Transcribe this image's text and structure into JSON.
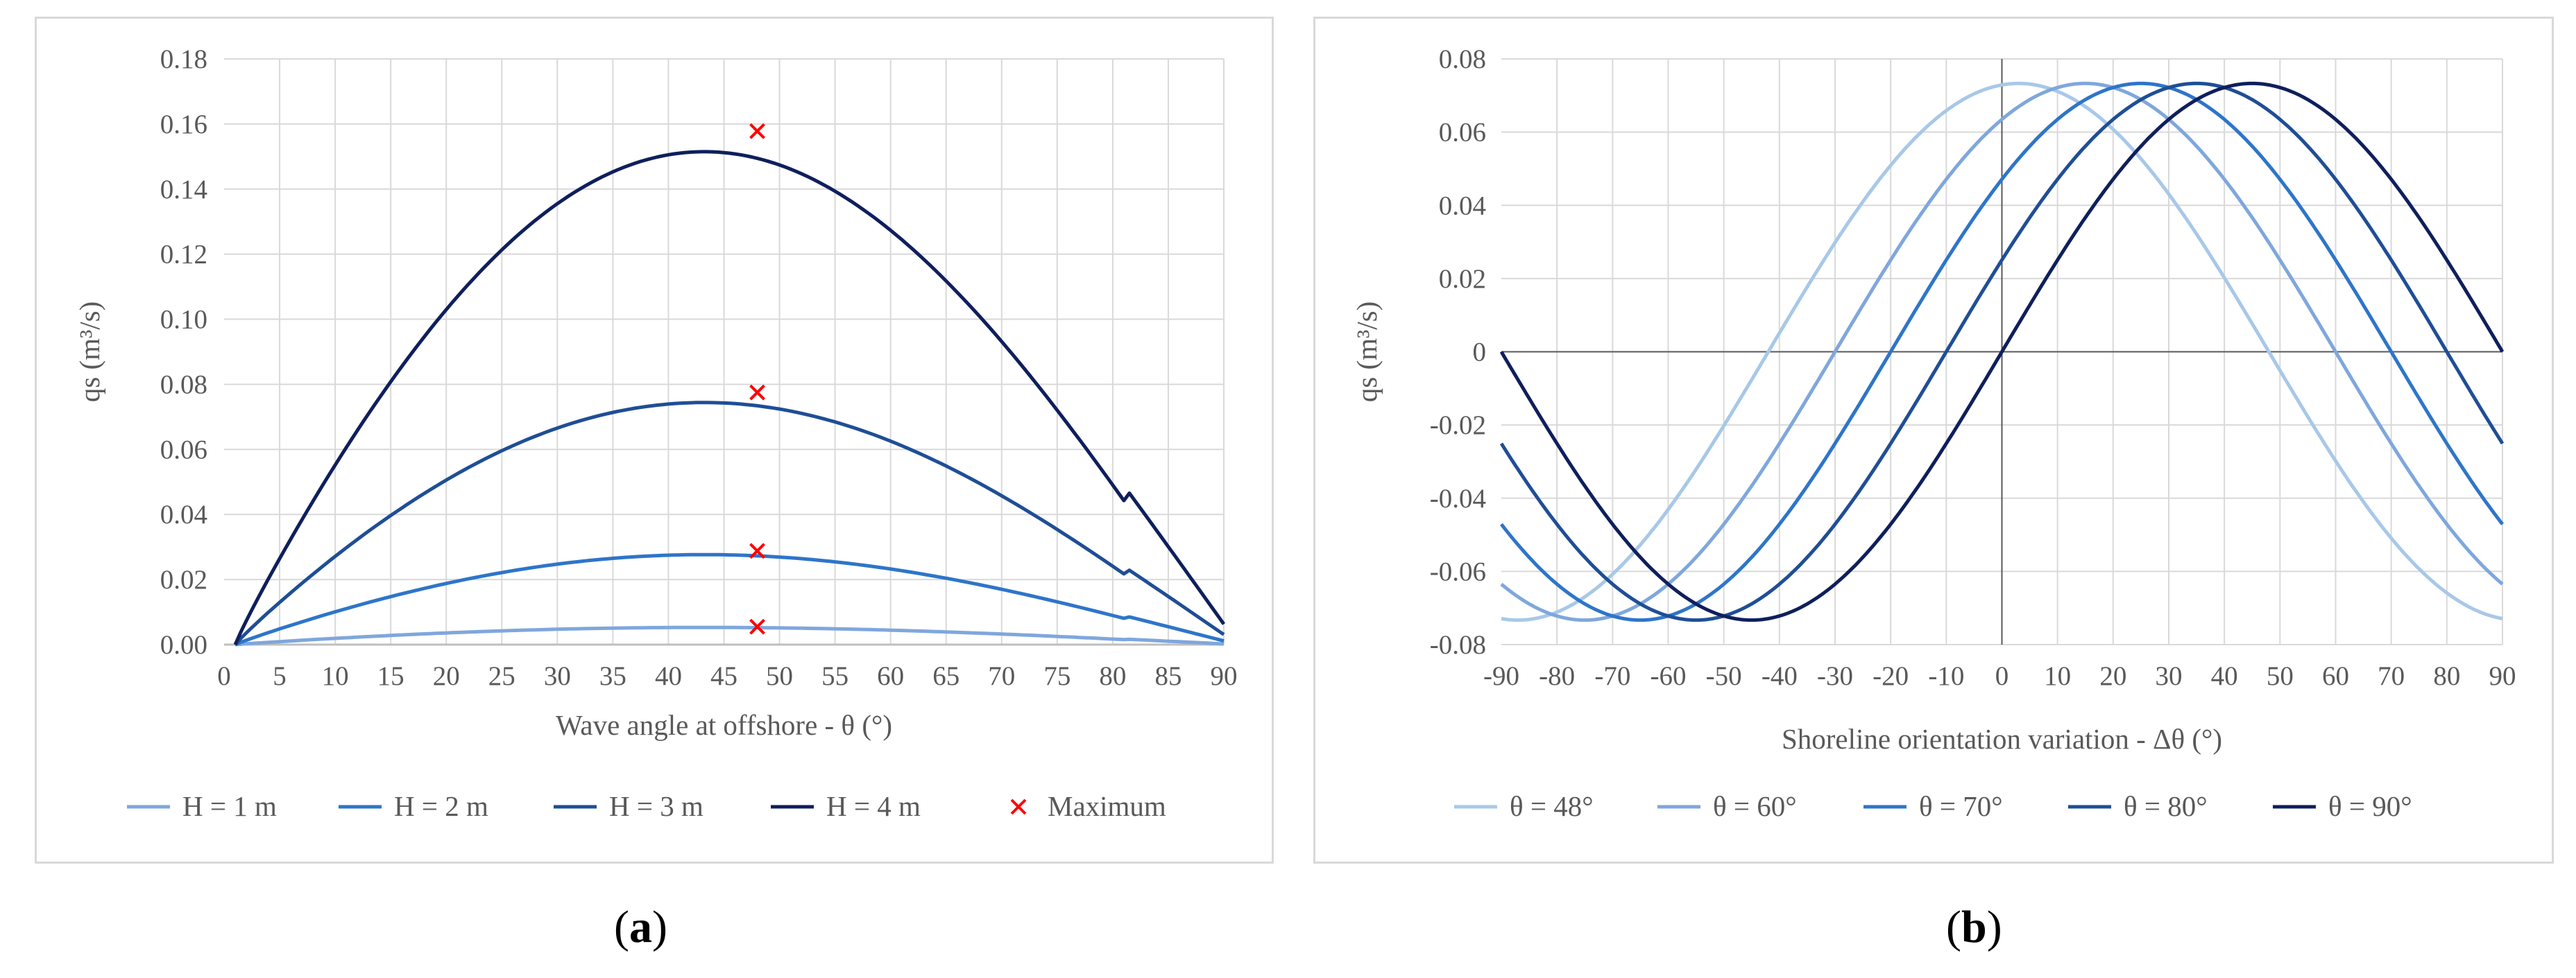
{
  "captions": {
    "a_letter": "a",
    "b_letter": "b",
    "open": "(",
    "close": ")"
  },
  "colors": {
    "h1": "#7fa7dc",
    "h2": "#2e75c9",
    "h3": "#1f4e96",
    "h4": "#0f1f5c",
    "maximum": "#ff0000",
    "t48": "#a8c8e8",
    "t60": "#7fa7dc",
    "t70": "#2e75c9",
    "t80": "#1f4e96",
    "t90": "#0f1f5c",
    "grid": "#d9d9d9",
    "axis": "#595959"
  },
  "chart_data": [
    {
      "type": "line",
      "panel": "a",
      "xlabel": "Wave angle at offshore - θ (°)",
      "ylabel": "qs (m³/s)",
      "xlim": [
        0,
        90
      ],
      "ylim": [
        0,
        0.18
      ],
      "xticks": [
        "0",
        "5",
        "10",
        "15",
        "20",
        "25",
        "30",
        "35",
        "40",
        "45",
        "50",
        "55",
        "60",
        "65",
        "70",
        "75",
        "80",
        "85",
        "90"
      ],
      "yticks": [
        "0.00",
        "0.02",
        "0.04",
        "0.06",
        "0.08",
        "0.10",
        "0.12",
        "0.14",
        "0.16",
        "0.18"
      ],
      "grid": true,
      "legend_position": "bottom",
      "series": [
        {
          "name": "H = 1 m",
          "color_key": "h1",
          "peak": 0.0055
        },
        {
          "name": "H = 2 m",
          "color_key": "h2",
          "peak": 0.0288
        },
        {
          "name": "H = 3 m",
          "color_key": "h3",
          "peak": 0.0775
        },
        {
          "name": "H = 4 m",
          "color_key": "h4",
          "peak": 0.1578
        }
      ],
      "x_range": [
        1,
        90
      ],
      "end_fraction": 0.04,
      "maximum": {
        "name": "Maximum",
        "x": 48,
        "y": [
          0.0055,
          0.0288,
          0.0775,
          0.1578
        ]
      }
    },
    {
      "type": "line",
      "panel": "b",
      "xlabel": "Shoreline orientation variation - Δθ (°)",
      "ylabel": "qs (m³/s)",
      "xlim": [
        -90,
        90
      ],
      "ylim": [
        -0.08,
        0.08
      ],
      "xticks": [
        "-90",
        "-80",
        "-70",
        "-60",
        "-50",
        "-40",
        "-30",
        "-20",
        "-10",
        "0",
        "10",
        "20",
        "30",
        "40",
        "50",
        "60",
        "70",
        "80",
        "90"
      ],
      "yticks": [
        "-0.08",
        "-0.06",
        "-0.04",
        "-0.02",
        "0",
        "0.02",
        "0.04",
        "0.06",
        "0.08"
      ],
      "grid": true,
      "legend_position": "bottom",
      "amplitude": 0.0733,
      "series": [
        {
          "name": "θ = 48°",
          "color_key": "t48",
          "theta": 48
        },
        {
          "name": "θ = 60°",
          "color_key": "t60",
          "theta": 60
        },
        {
          "name": "θ = 70°",
          "color_key": "t70",
          "theta": 70
        },
        {
          "name": "θ = 80°",
          "color_key": "t80",
          "theta": 80
        },
        {
          "name": "θ = 90°",
          "color_key": "t90",
          "theta": 90
        }
      ]
    }
  ]
}
